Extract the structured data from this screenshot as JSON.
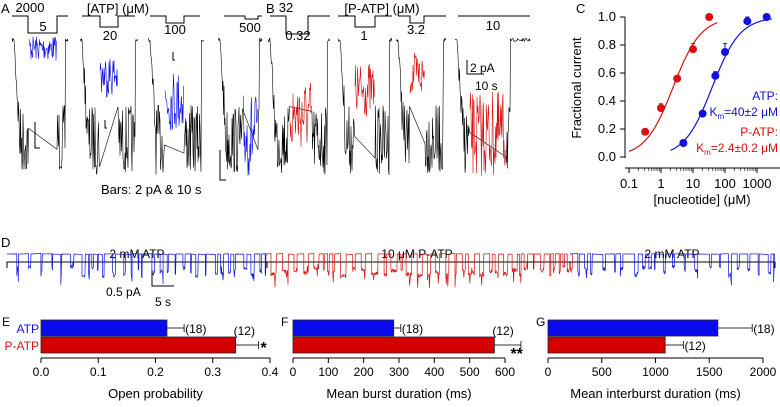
{
  "colors": {
    "atp": "#1010e0",
    "patp": "#d81010",
    "trace": "#000000",
    "bar_atp": "#0a0aee",
    "bar_patp": "#d40000"
  },
  "panelA": {
    "letter": "A",
    "title": "[ATP] (μM)",
    "ref_conc": "2000",
    "test_concs": [
      "5",
      "20",
      "100",
      "500"
    ],
    "scale_note": "Bars: 2 pA & 10 s"
  },
  "panelB": {
    "letter": "B",
    "title": "[P-ATP] (μM)",
    "ref_conc": "32",
    "test_concs": [
      "0.32",
      "1",
      "3.2",
      "10"
    ],
    "scale_pA": "2 pA",
    "scale_s": "10 s"
  },
  "panelD": {
    "letter": "D",
    "segments": [
      "2 mM ATP",
      "10 μM P-ATP",
      "2 mM ATP"
    ],
    "scale_pA": "0.5 pA",
    "scale_s": "5 s"
  },
  "chart_data": [
    {
      "panel": "C",
      "type": "scatter",
      "xscale": "log",
      "xlabel": "[nucleotide] (μM)",
      "ylabel": "Fractional current",
      "xticks": [
        "0.1",
        "1",
        "10",
        "100",
        "1000"
      ],
      "yticks": [
        "0.0",
        "0.2",
        "0.4",
        "0.6",
        "0.8",
        "1.0"
      ],
      "xlim": [
        0.1,
        3000
      ],
      "ylim": [
        0,
        1
      ],
      "series": [
        {
          "name": "ATP",
          "annotation": "K",
          "sub": "m",
          "value": "=40±2 μM",
          "Km": 40,
          "x": [
            5,
            20,
            50,
            100,
            500,
            2000
          ],
          "y": [
            0.1,
            0.31,
            0.58,
            0.75,
            0.97,
            1.0
          ],
          "err": [
            0,
            0.01,
            0.03,
            0.06,
            0.03,
            0
          ]
        },
        {
          "name": "P-ATP",
          "annotation": "K",
          "sub": "m",
          "value": "=2.4±0.2 μM",
          "Km": 2.4,
          "x": [
            0.32,
            1,
            3.2,
            10,
            32
          ],
          "y": [
            0.18,
            0.35,
            0.56,
            0.77,
            1.0
          ],
          "err": [
            0,
            0.03,
            0.02,
            0.04,
            0
          ]
        }
      ]
    },
    {
      "panel": "E",
      "type": "bar",
      "orientation": "horizontal",
      "categories": [
        "ATP",
        "P-ATP"
      ],
      "values": [
        0.22,
        0.34
      ],
      "errors": [
        0.03,
        0.04
      ],
      "n": [
        "(18)",
        "(12)"
      ],
      "sig": [
        "",
        "*"
      ],
      "xlabel": "Open probability",
      "xlim": [
        0,
        0.4
      ],
      "xticks": [
        "0.0",
        "0.1",
        "0.2",
        "0.3",
        "0.4"
      ]
    },
    {
      "panel": "F",
      "type": "bar",
      "orientation": "horizontal",
      "categories": [
        "ATP",
        "P-ATP"
      ],
      "values": [
        285,
        570
      ],
      "errors": [
        20,
        75
      ],
      "n": [
        "(18)",
        "(12)"
      ],
      "sig": [
        "",
        "**"
      ],
      "xlabel": "Mean burst duration (ms)",
      "xlim": [
        0,
        650
      ],
      "xticks": [
        "0",
        "100",
        "200",
        "300",
        "400",
        "500",
        "600"
      ]
    },
    {
      "panel": "G",
      "type": "bar",
      "orientation": "horizontal",
      "categories": [
        "ATP",
        "P-ATP"
      ],
      "values": [
        1580,
        1090
      ],
      "errors": [
        320,
        170
      ],
      "n": [
        "(18)",
        "(12)"
      ],
      "sig": [
        "",
        ""
      ],
      "xlabel": "Mean interburst duration (ms)",
      "xlim": [
        0,
        2100
      ],
      "xticks": [
        "0",
        "500",
        "1000",
        "1500",
        "2000"
      ]
    }
  ]
}
